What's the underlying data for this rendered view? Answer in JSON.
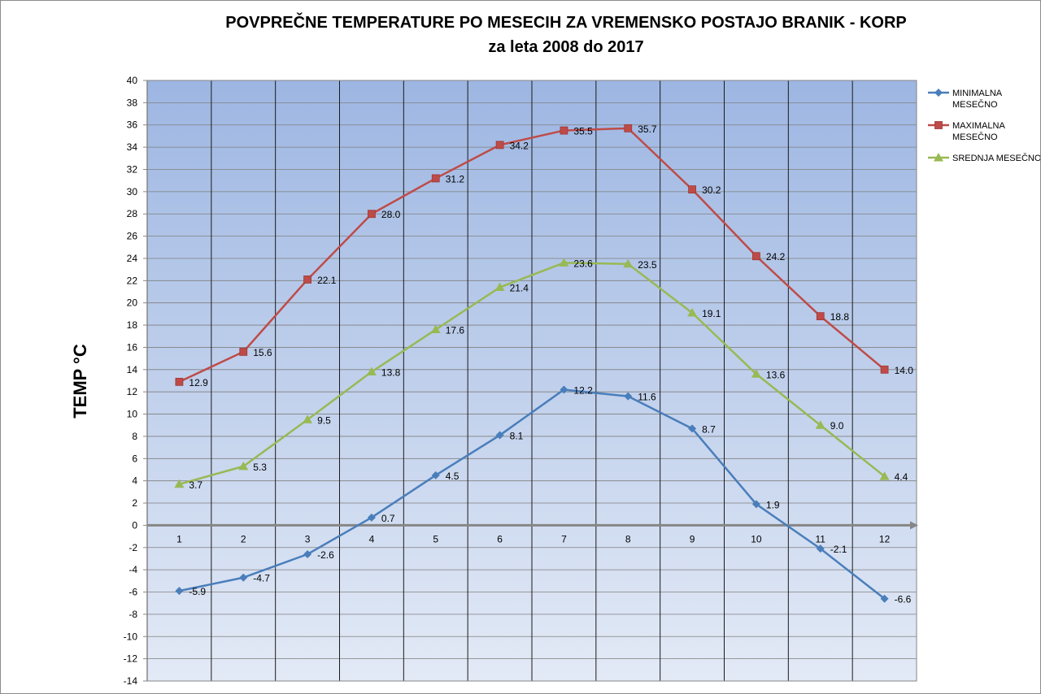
{
  "chart_data": {
    "type": "line",
    "title": "POVPREČNE  TEMPERATURE PO MESECIH ZA VREMENSKO POSTAJO BRANIK - KORP",
    "subtitle": "za leta 2008 do 2017",
    "xlabel": "",
    "ylabel": "TEMP °C",
    "ylim": [
      -14,
      40
    ],
    "ytick_step": 2,
    "categories": [
      "1",
      "2",
      "3",
      "4",
      "5",
      "6",
      "7",
      "8",
      "9",
      "10",
      "11",
      "12"
    ],
    "grid": true,
    "legend_position": "right",
    "series": [
      {
        "name_lines": [
          "MINIMALNA",
          "MESEČNO"
        ],
        "color": "#4a7ebb",
        "marker": "diamond",
        "values": [
          -5.9,
          -4.7,
          -2.6,
          0.7,
          4.5,
          8.1,
          12.2,
          11.6,
          8.7,
          1.9,
          -2.1,
          -6.6
        ],
        "labels": [
          "-5.9",
          "-4.7",
          "-2.6",
          "0.7",
          "4.5",
          "8.1",
          "12.2",
          "11.6",
          "8.7",
          "1.9",
          "-2.1",
          "-6.6"
        ]
      },
      {
        "name_lines": [
          "MAXIMALNA",
          "MESEČNO"
        ],
        "color": "#be4b48",
        "marker": "square",
        "values": [
          12.9,
          15.6,
          22.1,
          28.0,
          31.2,
          34.2,
          35.5,
          35.7,
          30.2,
          24.2,
          18.8,
          14.0
        ],
        "labels": [
          "12.9",
          "15.6",
          "22.1",
          "28.0",
          "31.2",
          "34.2",
          "35.5",
          "35.7",
          "30.2",
          "24.2",
          "18.8",
          "14.0"
        ]
      },
      {
        "name_lines": [
          "SREDNJA MESEČNO"
        ],
        "color": "#98b954",
        "marker": "triangle",
        "values": [
          3.7,
          5.3,
          9.5,
          13.8,
          17.6,
          21.4,
          23.6,
          23.5,
          19.1,
          13.6,
          9.0,
          4.4
        ],
        "labels": [
          "3.7",
          "5.3",
          "9.5",
          "13.8",
          "17.6",
          "21.4",
          "23.6",
          "23.5",
          "19.1",
          "13.6",
          "9.0",
          "4.4"
        ]
      }
    ]
  }
}
